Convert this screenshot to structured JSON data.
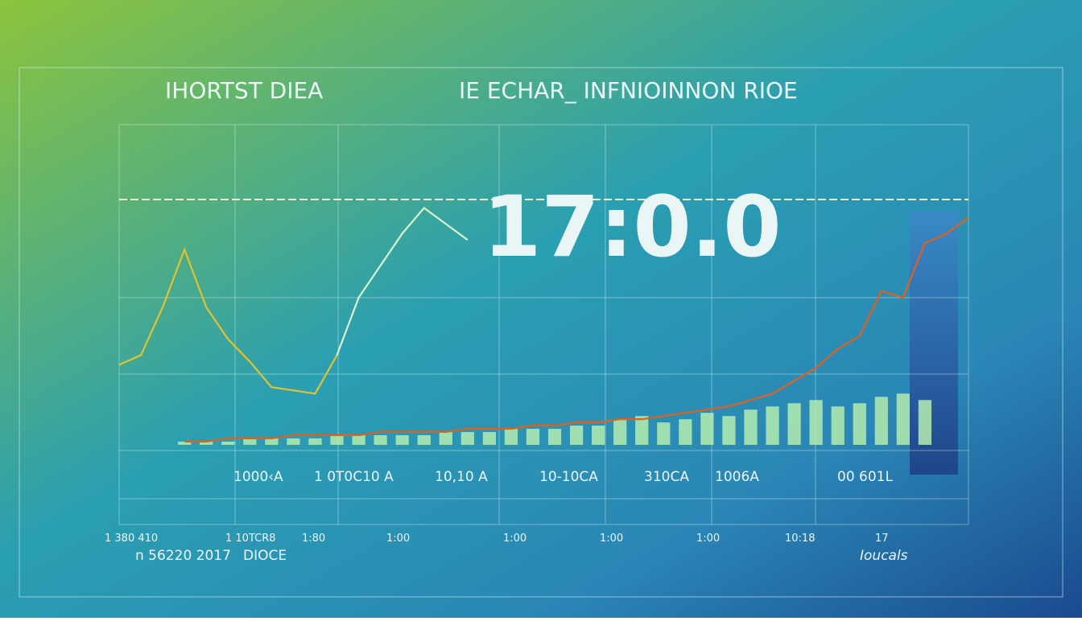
{
  "chart_data": {
    "type": "line",
    "title": "IHORTST DIEA",
    "subtitle": "IE ECHAR_ INFNIOINNON RIOE",
    "headline": "17:0.0",
    "x_labels": [
      "1000‹A",
      "1 0T0C10 A",
      "10,10 A",
      "10-10CA",
      "310CA",
      "1006A",
      "00 601L"
    ],
    "bottom_labels": [
      "1 380 410",
      "1 10TCR8",
      "1:80",
      "1:00",
      "1:00",
      "1:00",
      "1:00",
      "10:18",
      "17"
    ],
    "footer_left": "n 56220 2017",
    "footer_mid": "DIOCE",
    "footer_right": "Ioucals",
    "x": [
      0,
      1,
      2,
      3,
      4,
      5,
      6,
      7,
      8,
      9,
      10,
      11,
      12,
      13,
      14,
      15,
      16,
      17,
      18,
      19,
      20,
      21,
      22,
      23,
      24,
      25,
      26,
      27,
      28,
      29,
      30,
      31,
      32,
      33,
      34,
      35,
      36,
      37,
      38,
      39
    ],
    "xlim": [
      0,
      39
    ],
    "ylim": [
      0,
      100
    ],
    "series": [
      {
        "type": "bar",
        "color": "#b4ecb0",
        "values": [
          null,
          null,
          null,
          1,
          1,
          1,
          2,
          2,
          2,
          2,
          3,
          3,
          3,
          3,
          3,
          4,
          4,
          4,
          5,
          5,
          5,
          6,
          6,
          8,
          9,
          7,
          8,
          10,
          9,
          11,
          12,
          13,
          14,
          12,
          13,
          15,
          16,
          14,
          null,
          null
        ]
      },
      {
        "type": "line",
        "color": "#e2c22e",
        "values": [
          25,
          28,
          43,
          61,
          43,
          33,
          26,
          18,
          17,
          16,
          28,
          null,
          null,
          null,
          null,
          null,
          null,
          null,
          null,
          null,
          null,
          null,
          null,
          null,
          null,
          null,
          null,
          null,
          null,
          null,
          null,
          null,
          null,
          null,
          null,
          null,
          null,
          null,
          null,
          null
        ]
      },
      {
        "type": "line",
        "color": "#d8f2d0",
        "values": [
          null,
          null,
          null,
          null,
          null,
          null,
          null,
          null,
          null,
          null,
          28,
          46,
          56,
          66,
          74,
          69,
          64,
          null,
          null,
          null,
          null,
          null,
          null,
          null,
          null,
          null,
          null,
          null,
          null,
          null,
          null,
          null,
          null,
          null,
          null,
          null,
          null,
          null,
          null,
          null
        ]
      },
      {
        "type": "line",
        "color": "#e2601c",
        "values": [
          null,
          null,
          null,
          1,
          1,
          2,
          2,
          2,
          3,
          3,
          3,
          3,
          4,
          4,
          4,
          4,
          5,
          5,
          5,
          6,
          6,
          7,
          7,
          8,
          8,
          9,
          10,
          11,
          12,
          14,
          16,
          20,
          24,
          30,
          34,
          48,
          46,
          63,
          66,
          71
        ]
      }
    ]
  }
}
